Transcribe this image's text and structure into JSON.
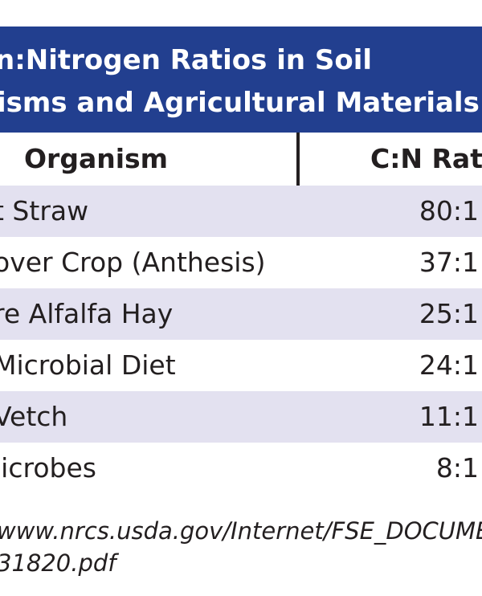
{
  "title": {
    "line1": "n:Nitrogen Ratios in Soil",
    "line2": "isms and Agricultural Materials"
  },
  "header": {
    "organism": "Organism",
    "ratio": "C:N Rati"
  },
  "rows": [
    {
      "name": "t Straw",
      "ratio": "80:1"
    },
    {
      "name": "over Crop (Anthesis)",
      "ratio": "37:1"
    },
    {
      "name": "re Alfalfa Hay",
      "ratio": "25:1"
    },
    {
      "name": "Microbial Diet",
      "ratio": "24:1"
    },
    {
      "name": "Vetch",
      "ratio": "11:1"
    },
    {
      "name": "licrobes",
      "ratio": "8:1"
    }
  ],
  "source": {
    "line1": "www.nrcs.usda.gov/Internet/FSE_DOCUMENT",
    "line2": "31820.pdf"
  },
  "colors": {
    "title_bg": "#223f8f",
    "row_shade": "#e3e1f0",
    "text": "#231f20"
  }
}
